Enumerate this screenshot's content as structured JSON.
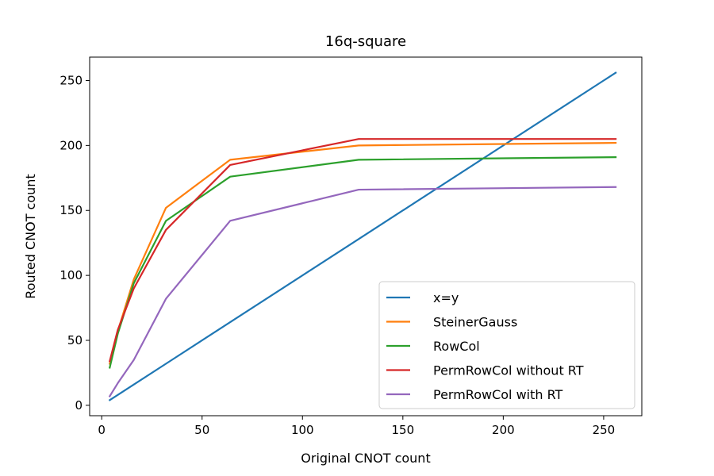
{
  "chart_data": {
    "type": "line",
    "title": "16q-square",
    "xlabel": "Original CNOT count",
    "ylabel": "Routed CNOT count",
    "xlim": [
      -6,
      269
    ],
    "ylim": [
      -8,
      268
    ],
    "xticks": [
      0,
      50,
      100,
      150,
      200,
      250
    ],
    "yticks": [
      0,
      50,
      100,
      150,
      200,
      250
    ],
    "grid": false,
    "legend_position": "lower-right",
    "series": [
      {
        "name": "x=y",
        "color": "#1f77b4",
        "x": [
          4,
          8,
          16,
          32,
          64,
          128,
          256
        ],
        "y": [
          4,
          8,
          16,
          32,
          64,
          128,
          256
        ]
      },
      {
        "name": "SteinerGauss",
        "color": "#ff7f0e",
        "x": [
          4,
          8,
          16,
          32,
          64,
          128,
          256
        ],
        "y": [
          32,
          57,
          97,
          152,
          189,
          200,
          202
        ]
      },
      {
        "name": "RowCol",
        "color": "#2ca02c",
        "x": [
          4,
          8,
          16,
          32,
          64,
          128,
          256
        ],
        "y": [
          29,
          55,
          94,
          142,
          176,
          189,
          191
        ]
      },
      {
        "name": "PermRowCol without RT",
        "color": "#d62728",
        "x": [
          4,
          8,
          16,
          32,
          64,
          128,
          256
        ],
        "y": [
          34,
          58,
          90,
          135,
          185,
          205,
          205
        ]
      },
      {
        "name": "PermRowCol with RT",
        "color": "#9467bd",
        "x": [
          4,
          8,
          16,
          32,
          64,
          128,
          256
        ],
        "y": [
          7,
          17,
          35,
          82,
          142,
          166,
          168
        ]
      }
    ]
  }
}
